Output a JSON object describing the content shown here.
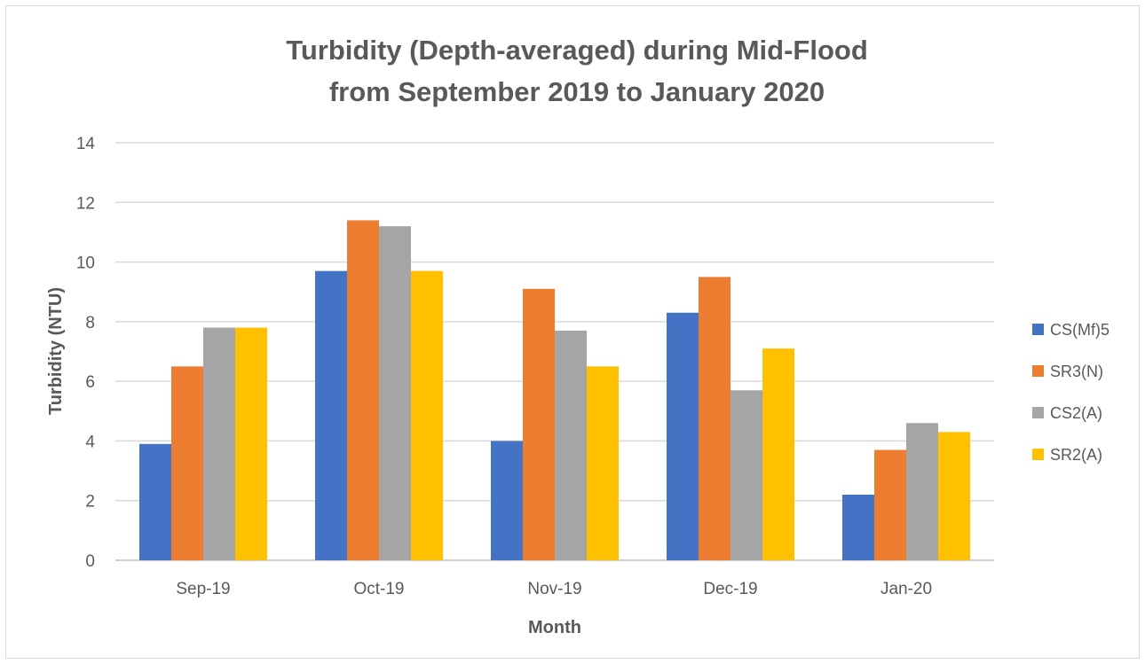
{
  "chart_data": {
    "type": "bar",
    "title_line1": "Turbidity (Depth-averaged) during Mid-Flood",
    "title_line2": "from September 2019 to January 2020",
    "xlabel": "Month",
    "ylabel": "Turbidity (NTU)",
    "ylim": [
      0,
      14
    ],
    "yticks": [
      0,
      2,
      4,
      6,
      8,
      10,
      12,
      14
    ],
    "grid": true,
    "legend_position": "right",
    "categories": [
      "Sep-19",
      "Oct-19",
      "Nov-19",
      "Dec-19",
      "Jan-20"
    ],
    "series": [
      {
        "name": "CS(Mf)5",
        "color": "#4472C4",
        "values": [
          3.9,
          9.7,
          4.0,
          8.3,
          2.2
        ]
      },
      {
        "name": "SR3(N)",
        "color": "#ED7D31",
        "values": [
          6.5,
          11.4,
          9.1,
          9.5,
          3.7
        ]
      },
      {
        "name": "CS2(A)",
        "color": "#A5A5A5",
        "values": [
          7.8,
          11.2,
          7.7,
          5.7,
          4.6
        ]
      },
      {
        "name": "SR2(A)",
        "color": "#FFC000",
        "values": [
          7.8,
          9.7,
          6.5,
          7.1,
          4.3
        ]
      }
    ]
  }
}
